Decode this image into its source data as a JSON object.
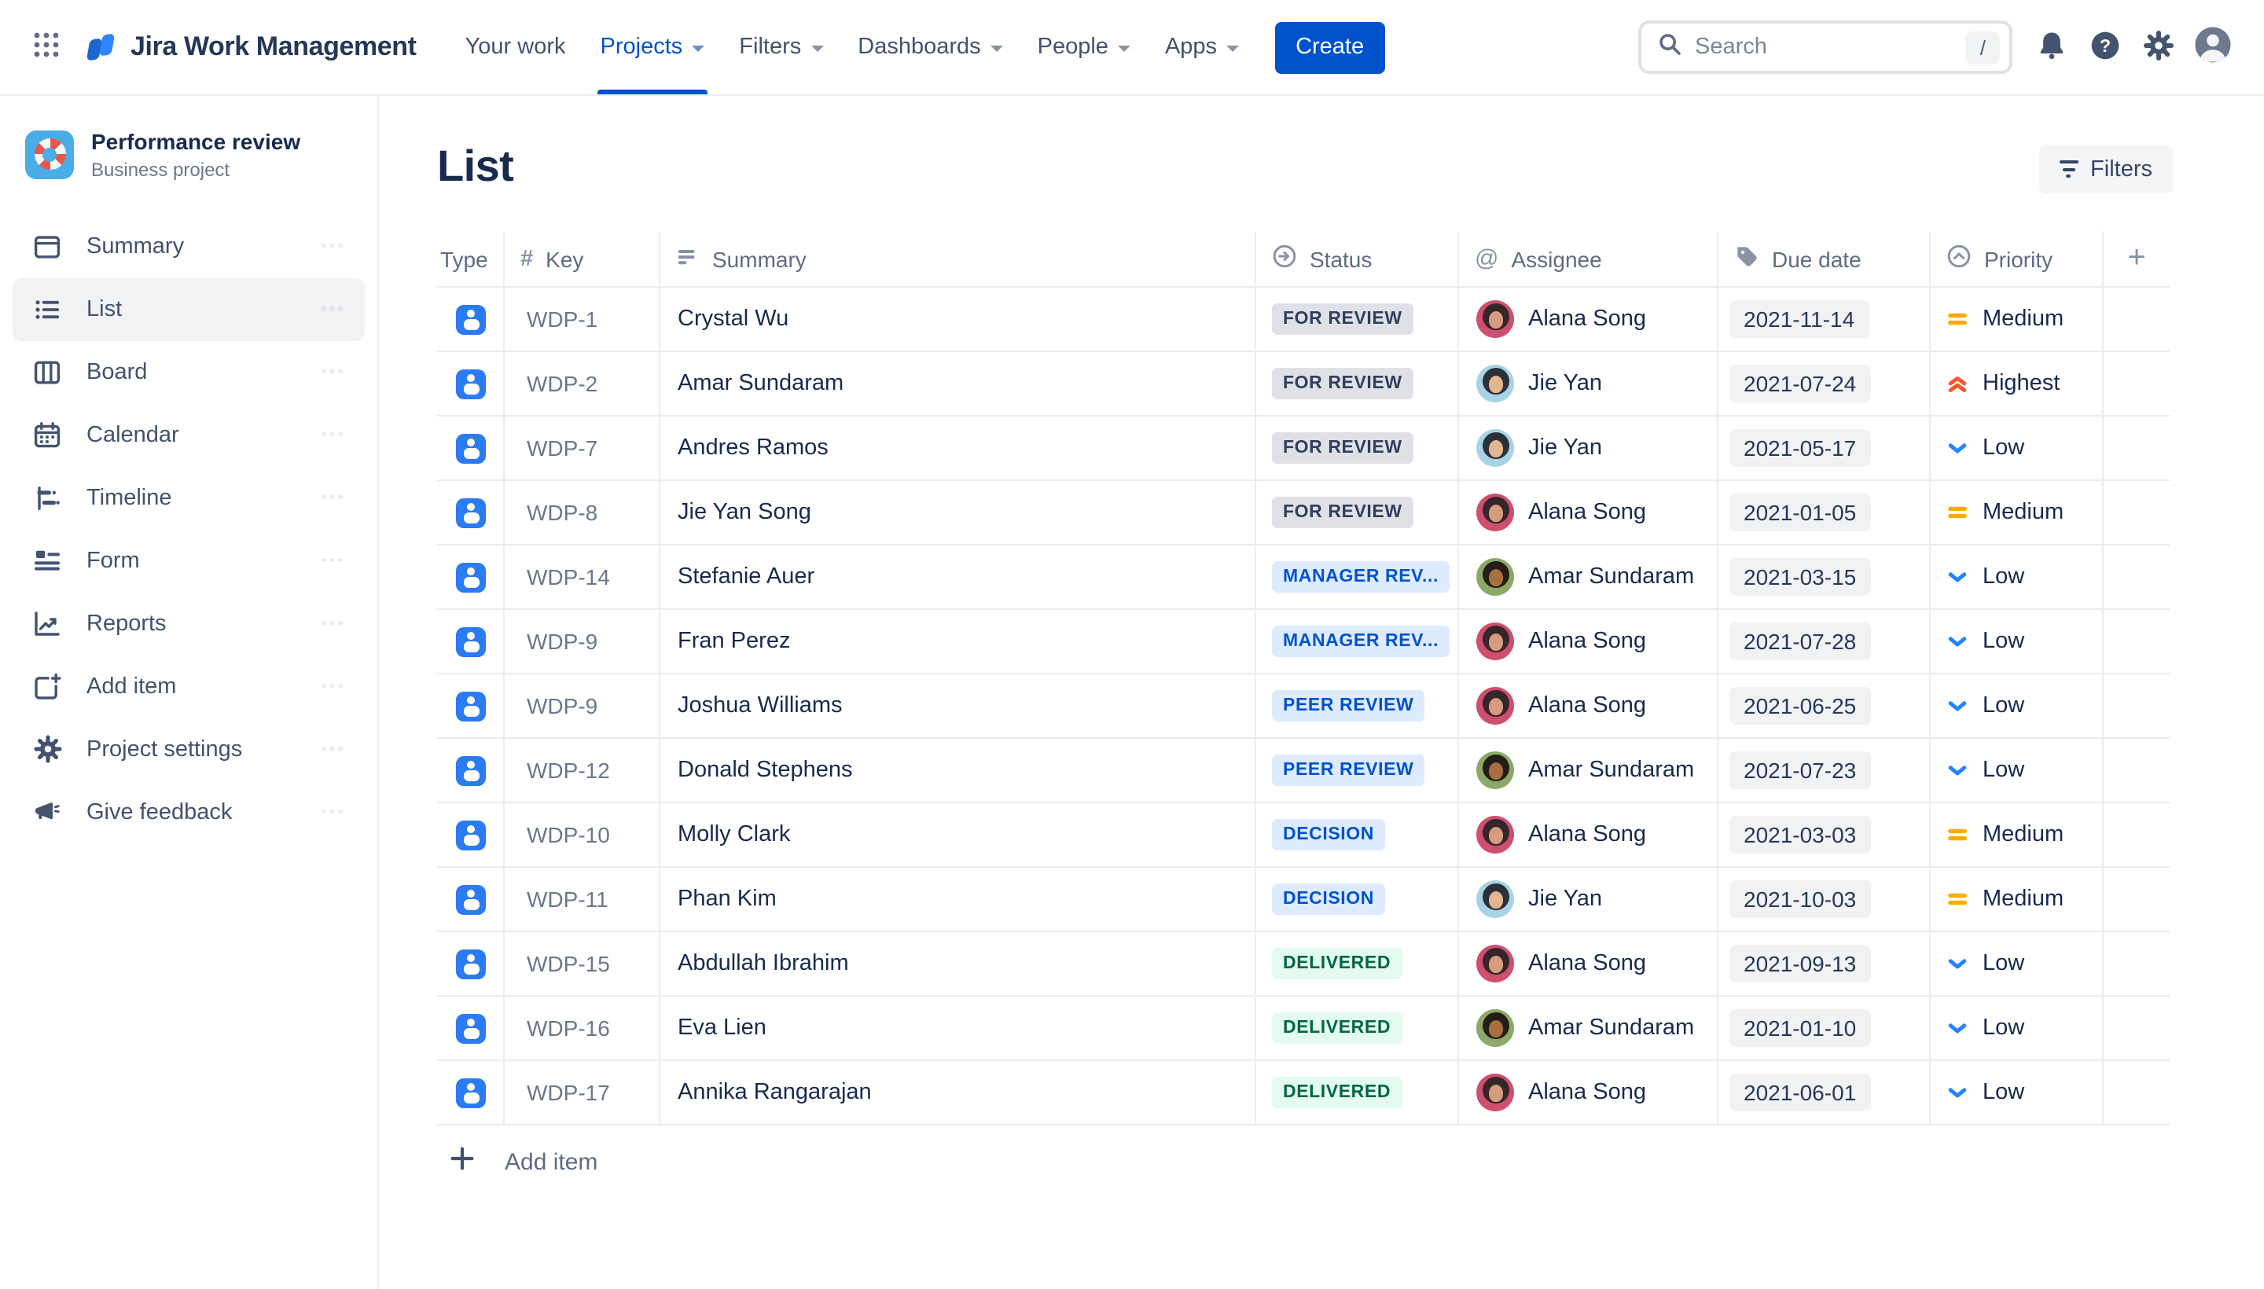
{
  "nav": {
    "app_name": "Jira Work Management",
    "items": [
      {
        "label": "Your work",
        "has_menu": false,
        "active": false
      },
      {
        "label": "Projects",
        "has_menu": true,
        "active": true
      },
      {
        "label": "Filters",
        "has_menu": true,
        "active": false
      },
      {
        "label": "Dashboards",
        "has_menu": true,
        "active": false
      },
      {
        "label": "People",
        "has_menu": true,
        "active": false
      },
      {
        "label": "Apps",
        "has_menu": true,
        "active": false
      }
    ],
    "create_label": "Create",
    "search": {
      "placeholder": "Search",
      "shortcut": "/"
    }
  },
  "sidebar": {
    "project": {
      "name": "Performance review",
      "type": "Business project"
    },
    "items": [
      {
        "label": "Summary",
        "icon": "summary-icon",
        "active": false
      },
      {
        "label": "List",
        "icon": "list-icon",
        "active": true
      },
      {
        "label": "Board",
        "icon": "board-icon",
        "active": false
      },
      {
        "label": "Calendar",
        "icon": "calendar-icon",
        "active": false
      },
      {
        "label": "Timeline",
        "icon": "timeline-icon",
        "active": false
      },
      {
        "label": "Form",
        "icon": "form-icon",
        "active": false
      },
      {
        "label": "Reports",
        "icon": "reports-icon",
        "active": false
      },
      {
        "label": "Add item",
        "icon": "add-item-icon",
        "active": false
      },
      {
        "label": "Project settings",
        "icon": "settings-icon",
        "active": false
      },
      {
        "label": "Give feedback",
        "icon": "megaphone-icon",
        "active": false
      }
    ]
  },
  "main": {
    "title": "List",
    "filters_button": "Filters",
    "add_item_label": "Add item"
  },
  "table": {
    "columns": [
      {
        "id": "type",
        "label": "Type",
        "icon": ""
      },
      {
        "id": "key",
        "label": "Key",
        "icon": "hash-icon"
      },
      {
        "id": "summary",
        "label": "Summary",
        "icon": "lines-icon"
      },
      {
        "id": "status",
        "label": "Status",
        "icon": "status-circle-icon"
      },
      {
        "id": "assignee",
        "label": "Assignee",
        "icon": "at-icon"
      },
      {
        "id": "due",
        "label": "Due date",
        "icon": "tag-icon"
      },
      {
        "id": "priority",
        "label": "Priority",
        "icon": "priority-circle-icon"
      },
      {
        "id": "add",
        "label": "",
        "icon": "plus-icon"
      }
    ],
    "rows": [
      {
        "key": "WDP-1",
        "summary": "Crystal Wu",
        "status": "FOR REVIEW",
        "status_style": "neutral",
        "assignee": "Alana Song",
        "avatar": "alana",
        "due": "2021-11-14",
        "priority": "Medium",
        "priority_style": "medium"
      },
      {
        "key": "WDP-2",
        "summary": "Amar Sundaram",
        "status": "FOR REVIEW",
        "status_style": "neutral",
        "assignee": "Jie Yan",
        "avatar": "jie",
        "due": "2021-07-24",
        "priority": "Highest",
        "priority_style": "highest"
      },
      {
        "key": "WDP-7",
        "summary": "Andres Ramos",
        "status": "FOR REVIEW",
        "status_style": "neutral",
        "assignee": "Jie Yan",
        "avatar": "jie",
        "due": "2021-05-17",
        "priority": "Low",
        "priority_style": "low"
      },
      {
        "key": "WDP-8",
        "summary": "Jie Yan Song",
        "status": "FOR REVIEW",
        "status_style": "neutral",
        "assignee": "Alana Song",
        "avatar": "alana",
        "due": "2021-01-05",
        "priority": "Medium",
        "priority_style": "medium"
      },
      {
        "key": "WDP-14",
        "summary": "Stefanie Auer",
        "status": "MANAGER REV...",
        "status_style": "info",
        "assignee": "Amar Sundaram",
        "avatar": "amar",
        "due": "2021-03-15",
        "priority": "Low",
        "priority_style": "low"
      },
      {
        "key": "WDP-9",
        "summary": "Fran Perez",
        "status": "MANAGER REV...",
        "status_style": "info",
        "assignee": "Alana Song",
        "avatar": "alana",
        "due": "2021-07-28",
        "priority": "Low",
        "priority_style": "low"
      },
      {
        "key": "WDP-9",
        "summary": "Joshua Williams",
        "status": "PEER REVIEW",
        "status_style": "info",
        "assignee": "Alana Song",
        "avatar": "alana",
        "due": "2021-06-25",
        "priority": "Low",
        "priority_style": "low"
      },
      {
        "key": "WDP-12",
        "summary": "Donald Stephens",
        "status": "PEER REVIEW",
        "status_style": "info",
        "assignee": "Amar Sundaram",
        "avatar": "amar",
        "due": "2021-07-23",
        "priority": "Low",
        "priority_style": "low"
      },
      {
        "key": "WDP-10",
        "summary": "Molly Clark",
        "status": "DECISION",
        "status_style": "info",
        "assignee": "Alana Song",
        "avatar": "alana",
        "due": "2021-03-03",
        "priority": "Medium",
        "priority_style": "medium"
      },
      {
        "key": "WDP-11",
        "summary": "Phan Kim",
        "status": "DECISION",
        "status_style": "info",
        "assignee": "Jie Yan",
        "avatar": "jie",
        "due": "2021-10-03",
        "priority": "Medium",
        "priority_style": "medium"
      },
      {
        "key": "WDP-15",
        "summary": "Abdullah Ibrahim",
        "status": "DELIVERED",
        "status_style": "success",
        "assignee": "Alana Song",
        "avatar": "alana",
        "due": "2021-09-13",
        "priority": "Low",
        "priority_style": "low"
      },
      {
        "key": "WDP-16",
        "summary": "Eva Lien",
        "status": "DELIVERED",
        "status_style": "success",
        "assignee": "Amar Sundaram",
        "avatar": "amar",
        "due": "2021-01-10",
        "priority": "Low",
        "priority_style": "low"
      },
      {
        "key": "WDP-17",
        "summary": "Annika Rangarajan",
        "status": "DELIVERED",
        "status_style": "success",
        "assignee": "Alana Song",
        "avatar": "alana",
        "due": "2021-06-01",
        "priority": "Low",
        "priority_style": "low"
      }
    ]
  },
  "colors": {
    "brand": "#0052CC",
    "nav_active": "#0052CC",
    "status_neutral_bg": "#DFE1E6",
    "status_neutral_text": "#2F3F5C",
    "status_info_bg": "#DEEBFF",
    "status_info_text": "#0052CC",
    "status_success_bg": "#E3FCEF",
    "status_success_text": "#006644",
    "priority_medium": "#FFAB00",
    "priority_highest": "#FF5630",
    "priority_low": "#2684FF",
    "project_tile": "#4BADE8",
    "type_icon": "#2B7BF3"
  }
}
